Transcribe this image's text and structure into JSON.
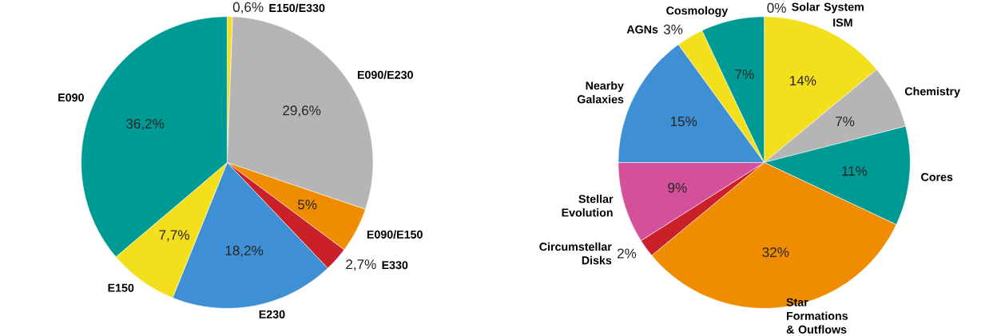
{
  "chart_data": [
    {
      "type": "pie",
      "categories": [
        "E150/E330",
        "E090/E230",
        "E090/E150",
        "E330",
        "E230",
        "E150",
        "E090"
      ],
      "values": [
        0.6,
        29.6,
        5,
        2.7,
        18.2,
        7.7,
        36.2
      ],
      "value_labels": [
        "0,6%",
        "29,6%",
        "5%",
        "2,7%",
        "18,2%",
        "7,7%",
        "36,2%"
      ],
      "colors": [
        "#f3df1c",
        "#b5b5b5",
        "#ef8c00",
        "#c9202a",
        "#3f8fd4",
        "#f3df1c",
        "#009a94"
      ]
    },
    {
      "type": "pie",
      "categories": [
        "Solar System",
        "ISM",
        "Chemistry",
        "Cores",
        "Star Formations & Outflows",
        "Circumstellar Disks",
        "Stellar Evolution",
        "Nearby Galaxies",
        "AGNs",
        "Cosmology"
      ],
      "values": [
        0,
        14,
        7,
        11,
        32,
        2,
        9,
        15,
        3,
        7
      ],
      "value_labels": [
        "0%",
        "14%",
        "7%",
        "11%",
        "32%",
        "2%",
        "9%",
        "15%",
        "3%",
        "7%"
      ],
      "colors": [
        "#f3df1c",
        "#f3df1c",
        "#b5b5b5",
        "#009a94",
        "#ef8c00",
        "#c9202a",
        "#d4509a",
        "#3f8fd4",
        "#f3df1c",
        "#009a94"
      ]
    }
  ]
}
